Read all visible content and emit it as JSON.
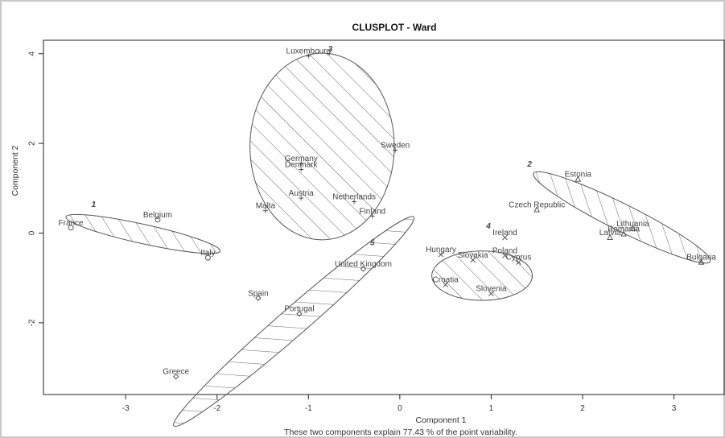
{
  "chart_data": {
    "type": "scatter",
    "title": "CLUSPLOT - Ward",
    "xlabel": "Component 1",
    "ylabel": "Component 2",
    "subtitle": "These two components explain 77.43 % of the point variability.",
    "xlim": [
      -3.9,
      3.55
    ],
    "ylim": [
      -3.6,
      4.3
    ],
    "xticks": [
      -3,
      -2,
      -1,
      0,
      1,
      2,
      3
    ],
    "yticks": [
      -2,
      0,
      2,
      4
    ],
    "grid": false,
    "clusters": [
      {
        "id": "1",
        "marker": "circle",
        "ellipse": {
          "cx": -2.81,
          "cy": -0.02,
          "rx": 0.865,
          "ry": 0.215,
          "angle": -12.5
        },
        "label_pos": {
          "x": -3.35,
          "y": 0.58
        },
        "points": [
          {
            "label": "France",
            "x": -3.6,
            "y": 0.12
          },
          {
            "label": "Belgium",
            "x": -2.65,
            "y": 0.3
          },
          {
            "label": "Italy",
            "x": -2.1,
            "y": -0.55
          }
        ]
      },
      {
        "id": "2",
        "marker": "triangle",
        "ellipse": {
          "cx": 2.43,
          "cy": 0.35,
          "rx": 1.08,
          "ry": 0.3,
          "angle": -26.5
        },
        "label_pos": {
          "x": 1.42,
          "y": 1.48
        },
        "points": [
          {
            "label": "Estonia",
            "x": 1.95,
            "y": 1.2
          },
          {
            "label": "Czech Republic",
            "x": 1.5,
            "y": 0.52
          },
          {
            "label": "Lithuania",
            "x": 2.55,
            "y": 0.1
          },
          {
            "label": "Romania",
            "x": 2.45,
            "y": -0.02
          },
          {
            "label": "Latvia",
            "x": 2.3,
            "y": -0.1
          },
          {
            "label": "Bulgaria",
            "x": 3.3,
            "y": -0.65
          }
        ]
      },
      {
        "id": "3",
        "marker": "plus",
        "ellipse": {
          "cx": -0.85,
          "cy": 1.93,
          "rx": 0.79,
          "ry": 2.08,
          "angle": 0
        },
        "label_pos": {
          "x": -0.76,
          "y": 4.05
        },
        "points": [
          {
            "label": "Luxembourg",
            "x": -1.0,
            "y": 3.95
          },
          {
            "label": "Sweden",
            "x": -0.05,
            "y": 1.85
          },
          {
            "label": "Germany",
            "x": -1.08,
            "y": 1.55
          },
          {
            "label": "Denmark",
            "x": -1.08,
            "y": 1.42
          },
          {
            "label": "Austria",
            "x": -1.08,
            "y": 0.78
          },
          {
            "label": "Netherlands",
            "x": -0.5,
            "y": 0.7
          },
          {
            "label": "Malta",
            "x": -1.47,
            "y": 0.5
          },
          {
            "label": "Finland",
            "x": -0.3,
            "y": 0.38
          }
        ]
      },
      {
        "id": "4",
        "marker": "cross",
        "ellipse": {
          "cx": 0.9,
          "cy": -0.95,
          "rx": 0.55,
          "ry": 0.55,
          "angle": 0
        },
        "label_pos": {
          "x": 0.97,
          "y": 0.1
        },
        "points": [
          {
            "label": "Ireland",
            "x": 1.15,
            "y": -0.1
          },
          {
            "label": "Hungary",
            "x": 0.45,
            "y": -0.48
          },
          {
            "label": "Slovakia",
            "x": 0.8,
            "y": -0.6
          },
          {
            "label": "Poland",
            "x": 1.15,
            "y": -0.5
          },
          {
            "label": "Cyprus",
            "x": 1.3,
            "y": -0.65
          },
          {
            "label": "Croatia",
            "x": 0.5,
            "y": -1.15
          },
          {
            "label": "Slovenia",
            "x": 1.0,
            "y": -1.35
          }
        ]
      },
      {
        "id": "5",
        "marker": "diamond",
        "ellipse": {
          "cx": -1.16,
          "cy": -1.97,
          "rx": 1.74,
          "ry": 0.31,
          "angle": 41
        },
        "label_pos": {
          "x": -0.3,
          "y": -0.27
        },
        "points": [
          {
            "label": "United Kingdom",
            "x": -0.4,
            "y": -0.8
          },
          {
            "label": "Spain",
            "x": -1.55,
            "y": -1.45
          },
          {
            "label": "Portugal",
            "x": -1.1,
            "y": -1.8
          },
          {
            "label": "Greece",
            "x": -2.45,
            "y": -3.2
          }
        ]
      }
    ]
  }
}
